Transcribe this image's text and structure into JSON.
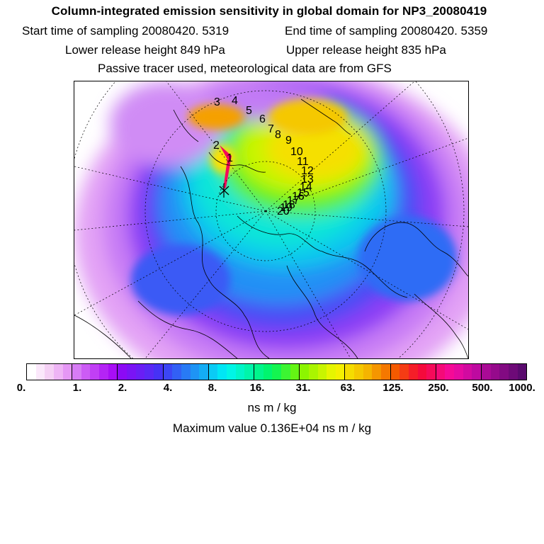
{
  "header": {
    "title": "Column-integrated emission sensitivity in global domain for NP3_20080419",
    "start_time": "Start time of sampling 20080420.  5319",
    "end_time": "End time of sampling 20080420.  5359",
    "lower_height": "Lower release height  849 hPa",
    "upper_height": "Upper release height  835 hPa",
    "tracer_note": "Passive tracer used, meteorological data are from GFS"
  },
  "map": {
    "trajectory_labels": [
      "1",
      "2",
      "3",
      "4",
      "5",
      "6",
      "7",
      "8",
      "9",
      "10",
      "11",
      "12",
      "13",
      "14",
      "15",
      "16",
      "17",
      "18",
      "19",
      "20"
    ]
  },
  "colorbar": {
    "tick_labels": [
      "0.",
      "1.",
      "2.",
      "4.",
      "8.",
      "16.",
      "31.",
      "63.",
      "125.",
      "250.",
      "500.",
      "1000."
    ],
    "colors": [
      "#ffffff",
      "#fbe8fb",
      "#f5d0f5",
      "#eeb4f5",
      "#e597f5",
      "#d77cf5",
      "#cc5cf5",
      "#c13ff5",
      "#b424f5",
      "#a80ef5",
      "#8c0af5",
      "#7a14f5",
      "#6a1ef5",
      "#5a28f5",
      "#4632f5",
      "#3c46f5",
      "#3260f5",
      "#287af5",
      "#1e94f5",
      "#14adf5",
      "#0acbf5",
      "#00e6f5",
      "#00f5e6",
      "#00f5c8",
      "#00f5aa",
      "#00f58c",
      "#00f56e",
      "#14f550",
      "#3cf532",
      "#64f514",
      "#8cf500",
      "#aaf500",
      "#c8f500",
      "#e6f500",
      "#f5f000",
      "#f5dc00",
      "#f5c800",
      "#f5b400",
      "#f59600",
      "#f57800",
      "#f55a00",
      "#f53c14",
      "#f51e28",
      "#f50a3c",
      "#f50a5a",
      "#f50a78",
      "#f50a96",
      "#e60aa0",
      "#d20aa0",
      "#be0aa0",
      "#aa0a96",
      "#960a8c",
      "#820a82",
      "#6e0a78",
      "#5a0a6e"
    ]
  },
  "units_label": "ns m / kg",
  "max_value_text": "Maximum value  0.136E+04 ns m / kg"
}
